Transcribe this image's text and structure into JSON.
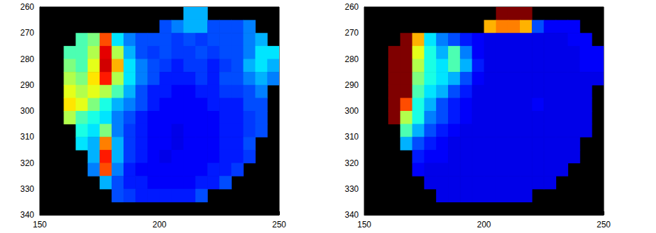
{
  "chart_data": [
    {
      "type": "heatmap",
      "x": [
        152.5,
        157.5,
        162.5,
        167.5,
        172.5,
        177.5,
        182.5,
        187.5,
        192.5,
        197.5,
        202.5,
        207.5,
        212.5,
        217.5,
        222.5,
        227.5,
        232.5,
        237.5,
        242.5,
        247.5
      ],
      "y": [
        262.5,
        267.5,
        272.5,
        277.5,
        282.5,
        287.5,
        292.5,
        297.5,
        302.5,
        307.5,
        312.5,
        317.5,
        322.5,
        327.5,
        332.5,
        337.5
      ],
      "z": [
        [
          null,
          null,
          null,
          null,
          null,
          null,
          null,
          null,
          null,
          null,
          null,
          null,
          0.3,
          0.3,
          null,
          null,
          null,
          null,
          null,
          null
        ],
        [
          null,
          null,
          null,
          null,
          null,
          null,
          null,
          null,
          null,
          null,
          0.2,
          0.25,
          0.3,
          0.3,
          0.2,
          0.2,
          0.2,
          0.25,
          null,
          null
        ],
        [
          null,
          null,
          null,
          0.45,
          0.5,
          0.8,
          0.35,
          0.25,
          0.2,
          0.2,
          0.2,
          0.18,
          0.2,
          0.18,
          0.2,
          0.2,
          0.2,
          0.25,
          0.3,
          null
        ],
        [
          null,
          null,
          0.45,
          0.45,
          0.55,
          0.9,
          0.55,
          0.3,
          0.2,
          0.18,
          0.2,
          0.18,
          0.18,
          0.2,
          0.18,
          0.2,
          0.2,
          0.25,
          0.35,
          0.35
        ],
        [
          null,
          null,
          0.5,
          0.45,
          0.6,
          0.92,
          0.7,
          0.35,
          0.25,
          0.2,
          0.18,
          0.15,
          0.18,
          0.18,
          0.15,
          0.18,
          0.2,
          0.3,
          0.35,
          0.3
        ],
        [
          null,
          null,
          0.55,
          0.5,
          0.65,
          0.85,
          0.55,
          0.35,
          0.25,
          0.2,
          0.15,
          0.15,
          0.15,
          0.18,
          0.15,
          0.2,
          0.2,
          0.25,
          0.3,
          0.25
        ],
        [
          null,
          null,
          0.6,
          0.55,
          0.6,
          0.55,
          0.45,
          0.3,
          0.2,
          0.15,
          0.15,
          0.12,
          0.12,
          0.15,
          0.15,
          0.18,
          0.18,
          0.2,
          0.25,
          null
        ],
        [
          null,
          null,
          0.65,
          0.6,
          0.5,
          0.4,
          0.3,
          0.25,
          0.2,
          0.15,
          0.12,
          0.12,
          0.12,
          0.12,
          0.15,
          0.15,
          0.15,
          0.2,
          0.2,
          null
        ],
        [
          null,
          null,
          0.55,
          0.45,
          0.4,
          0.35,
          0.25,
          0.2,
          0.15,
          0.12,
          0.12,
          0.12,
          0.12,
          0.12,
          0.12,
          0.15,
          0.15,
          0.18,
          0.2,
          null
        ],
        [
          null,
          null,
          null,
          0.4,
          0.35,
          0.5,
          0.25,
          0.18,
          0.15,
          0.12,
          0.12,
          0.1,
          0.12,
          0.12,
          0.12,
          0.15,
          0.15,
          0.18,
          0.2,
          null
        ],
        [
          null,
          null,
          null,
          0.35,
          0.3,
          0.75,
          0.3,
          0.18,
          0.15,
          0.12,
          0.12,
          0.1,
          0.12,
          0.12,
          0.12,
          0.15,
          0.15,
          0.2,
          null,
          null
        ],
        [
          null,
          null,
          null,
          null,
          0.3,
          0.85,
          0.3,
          0.18,
          0.15,
          0.12,
          0.1,
          0.12,
          0.12,
          0.12,
          0.12,
          0.15,
          0.15,
          0.18,
          null,
          null
        ],
        [
          null,
          null,
          null,
          null,
          0.25,
          0.8,
          0.25,
          0.15,
          0.12,
          0.12,
          0.12,
          0.12,
          0.12,
          0.12,
          0.15,
          0.15,
          0.18,
          null,
          null,
          null
        ],
        [
          null,
          null,
          null,
          null,
          null,
          0.3,
          0.2,
          0.15,
          0.15,
          0.12,
          0.12,
          0.12,
          0.12,
          0.15,
          0.15,
          0.2,
          null,
          null,
          null,
          null
        ],
        [
          null,
          null,
          null,
          null,
          null,
          null,
          0.2,
          0.18,
          0.15,
          0.15,
          0.15,
          0.15,
          0.15,
          0.2,
          null,
          null,
          null,
          null,
          null,
          null
        ],
        [
          null,
          null,
          null,
          null,
          null,
          null,
          null,
          null,
          null,
          null,
          null,
          null,
          null,
          null,
          null,
          null,
          null,
          null,
          null,
          null
        ]
      ],
      "clim": [
        0,
        1
      ],
      "xlim": [
        150,
        250
      ],
      "xticks": [
        150,
        200,
        250
      ],
      "ylim": [
        260,
        340
      ],
      "yticks": [
        260,
        270,
        280,
        290,
        300,
        310,
        320,
        330,
        340
      ]
    },
    {
      "type": "heatmap",
      "x": [
        152.5,
        157.5,
        162.5,
        167.5,
        172.5,
        177.5,
        182.5,
        187.5,
        192.5,
        197.5,
        202.5,
        207.5,
        212.5,
        217.5,
        222.5,
        227.5,
        232.5,
        237.5,
        242.5,
        247.5
      ],
      "y": [
        262.5,
        267.5,
        272.5,
        277.5,
        282.5,
        287.5,
        292.5,
        297.5,
        302.5,
        307.5,
        312.5,
        317.5,
        322.5,
        327.5,
        332.5,
        337.5
      ],
      "z": [
        [
          null,
          null,
          null,
          null,
          null,
          null,
          null,
          null,
          null,
          null,
          null,
          1,
          1,
          1,
          null,
          null,
          null,
          null,
          null,
          null
        ],
        [
          null,
          null,
          null,
          null,
          null,
          null,
          null,
          null,
          null,
          null,
          0.7,
          0.75,
          0.75,
          0.7,
          0.2,
          0.12,
          0.12,
          0.12,
          null,
          null
        ],
        [
          null,
          null,
          null,
          1,
          0.7,
          0.35,
          0.25,
          0.2,
          0.15,
          0.12,
          0.1,
          0.1,
          0.1,
          0.1,
          0.1,
          0.1,
          0.1,
          0.12,
          0.12,
          null
        ],
        [
          null,
          null,
          1,
          1,
          0.6,
          0.4,
          0.3,
          0.45,
          0.25,
          0.12,
          0.1,
          0.1,
          0.1,
          0.1,
          0.1,
          0.1,
          0.1,
          0.1,
          0.12,
          0.12
        ],
        [
          null,
          null,
          1,
          1,
          0.55,
          0.4,
          0.35,
          0.45,
          0.3,
          0.15,
          0.1,
          0.1,
          0.1,
          0.1,
          0.1,
          0.1,
          0.1,
          0.1,
          0.12,
          0.12
        ],
        [
          null,
          null,
          1,
          1,
          0.5,
          0.4,
          0.35,
          0.3,
          0.2,
          0.12,
          0.1,
          0.1,
          0.1,
          0.1,
          0.1,
          0.1,
          0.1,
          0.1,
          0.1,
          0.1
        ],
        [
          null,
          null,
          1,
          1,
          0.45,
          0.35,
          0.3,
          0.2,
          0.15,
          0.1,
          0.1,
          0.1,
          0.1,
          0.1,
          0.1,
          0.1,
          0.1,
          0.1,
          0.1,
          null
        ],
        [
          null,
          null,
          1,
          0.8,
          0.4,
          0.3,
          0.2,
          0.15,
          0.12,
          0.1,
          0.1,
          0.1,
          0.1,
          0.1,
          0.12,
          0.1,
          0.1,
          0.1,
          0.1,
          null
        ],
        [
          null,
          null,
          1,
          0.55,
          0.4,
          0.25,
          0.2,
          0.15,
          0.12,
          0.1,
          0.1,
          0.1,
          0.1,
          0.1,
          0.1,
          0.1,
          0.1,
          0.1,
          0.1,
          null
        ],
        [
          null,
          null,
          null,
          0.45,
          0.3,
          0.2,
          0.15,
          0.12,
          0.1,
          0.1,
          0.1,
          0.1,
          0.1,
          0.1,
          0.1,
          0.1,
          0.1,
          0.1,
          0.1,
          null
        ],
        [
          null,
          null,
          null,
          0.3,
          0.2,
          0.15,
          0.12,
          0.1,
          0.1,
          0.1,
          0.1,
          0.1,
          0.1,
          0.1,
          0.1,
          0.1,
          0.1,
          0.1,
          null,
          null
        ],
        [
          null,
          null,
          null,
          null,
          0.15,
          0.12,
          0.12,
          0.1,
          0.1,
          0.1,
          0.1,
          0.1,
          0.1,
          0.1,
          0.1,
          0.1,
          0.1,
          0.1,
          null,
          null
        ],
        [
          null,
          null,
          null,
          null,
          0.12,
          0.1,
          0.1,
          0.1,
          0.1,
          0.1,
          0.1,
          0.1,
          0.1,
          0.1,
          0.1,
          0.1,
          0.1,
          null,
          null,
          null
        ],
        [
          null,
          null,
          null,
          null,
          null,
          0.1,
          0.1,
          0.1,
          0.1,
          0.1,
          0.1,
          0.1,
          0.1,
          0.1,
          0.1,
          0.1,
          null,
          null,
          null,
          null
        ],
        [
          null,
          null,
          null,
          null,
          null,
          null,
          0.1,
          0.1,
          0.1,
          0.1,
          0.1,
          0.1,
          0.1,
          0.1,
          null,
          null,
          null,
          null,
          null,
          null
        ],
        [
          null,
          null,
          null,
          null,
          null,
          null,
          null,
          null,
          null,
          null,
          null,
          null,
          null,
          null,
          null,
          null,
          null,
          null,
          null,
          null
        ]
      ],
      "clim": [
        0,
        1
      ],
      "xlim": [
        150,
        250
      ],
      "xticks": [
        150,
        200,
        250
      ],
      "ylim": [
        260,
        340
      ],
      "yticks": [
        260,
        270,
        280,
        290,
        300,
        310,
        320,
        330,
        340
      ]
    }
  ]
}
